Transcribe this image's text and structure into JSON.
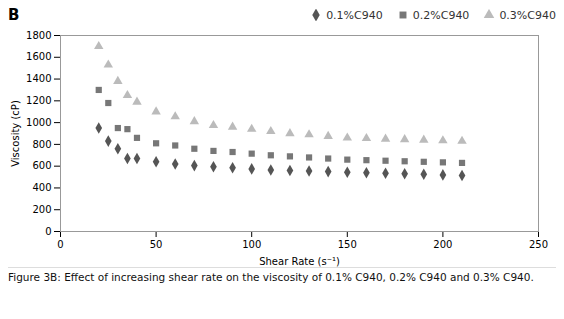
{
  "chart_data": {
    "type": "scatter",
    "title": "B",
    "caption": "Figure 3B: Effect of increasing shear rate on the viscosity of 0.1% C940, 0.2% C940 and 0.3% C940.",
    "xlabel": "Shear Rate (s⁻¹)",
    "ylabel": "Viscosity (cP)",
    "xlim": [
      0,
      250
    ],
    "ylim": [
      0,
      1800
    ],
    "xticks": [
      0,
      50,
      100,
      150,
      200,
      250
    ],
    "yticks": [
      0,
      200,
      400,
      600,
      800,
      1000,
      1200,
      1400,
      1600,
      1800
    ],
    "grid": false,
    "legend": "upper right",
    "x": [
      20,
      25,
      30,
      35,
      40,
      50,
      60,
      70,
      80,
      90,
      100,
      110,
      120,
      130,
      140,
      150,
      160,
      170,
      180,
      190,
      200,
      210
    ],
    "series": [
      {
        "name": "0.1%C940",
        "color": "#555555",
        "marker": "diamond",
        "values": [
          950,
          830,
          760,
          670,
          670,
          640,
          620,
          605,
          595,
          585,
          575,
          565,
          560,
          555,
          550,
          545,
          540,
          535,
          530,
          525,
          520,
          515
        ]
      },
      {
        "name": "0.2%C940",
        "color": "#777777",
        "marker": "square",
        "values": [
          1300,
          1180,
          950,
          940,
          860,
          810,
          790,
          760,
          740,
          730,
          715,
          700,
          690,
          680,
          670,
          660,
          655,
          650,
          645,
          640,
          635,
          630
        ]
      },
      {
        "name": "0.3%C940",
        "color": "#bbbbbb",
        "marker": "triangle",
        "values": [
          1700,
          1530,
          1380,
          1250,
          1190,
          1100,
          1055,
          1010,
          975,
          960,
          940,
          920,
          900,
          890,
          875,
          860,
          855,
          850,
          845,
          840,
          835,
          830
        ]
      }
    ]
  }
}
